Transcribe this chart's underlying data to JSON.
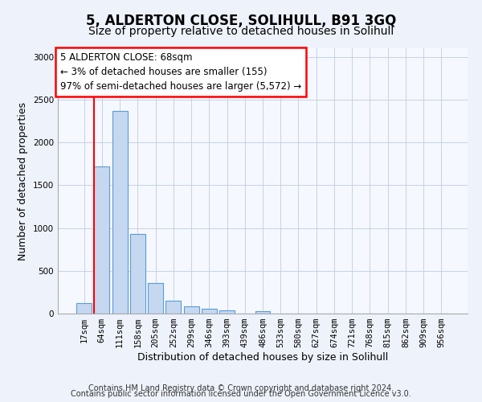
{
  "title": "5, ALDERTON CLOSE, SOLIHULL, B91 3GQ",
  "subtitle": "Size of property relative to detached houses in Solihull",
  "xlabel": "Distribution of detached houses by size in Solihull",
  "ylabel": "Number of detached properties",
  "categories": [
    "17sqm",
    "64sqm",
    "111sqm",
    "158sqm",
    "205sqm",
    "252sqm",
    "299sqm",
    "346sqm",
    "393sqm",
    "439sqm",
    "486sqm",
    "533sqm",
    "580sqm",
    "627sqm",
    "674sqm",
    "721sqm",
    "768sqm",
    "815sqm",
    "862sqm",
    "909sqm",
    "956sqm"
  ],
  "values": [
    120,
    1720,
    2370,
    930,
    355,
    155,
    80,
    55,
    38,
    0,
    32,
    0,
    0,
    0,
    0,
    0,
    0,
    0,
    0,
    0,
    0
  ],
  "bar_color": "#c5d8f0",
  "bar_edge_color": "#5b9bd5",
  "red_line_x": 1,
  "annotation_line1": "5 ALDERTON CLOSE: 68sqm",
  "annotation_line2": "← 3% of detached houses are smaller (155)",
  "annotation_line3": "97% of semi-detached houses are larger (5,572) →",
  "ylim": [
    0,
    3100
  ],
  "yticks": [
    0,
    500,
    1000,
    1500,
    2000,
    2500,
    3000
  ],
  "footer1": "Contains HM Land Registry data © Crown copyright and database right 2024.",
  "footer2": "Contains public sector information licensed under the Open Government Licence v3.0.",
  "bg_color": "#eef2fb",
  "plot_bg_color": "#f5f8ff",
  "grid_color": "#c0cce0",
  "title_fontsize": 12,
  "subtitle_fontsize": 10,
  "xlabel_fontsize": 9,
  "ylabel_fontsize": 9,
  "tick_fontsize": 7.5,
  "annotation_fontsize": 8.5,
  "footer_fontsize": 7
}
